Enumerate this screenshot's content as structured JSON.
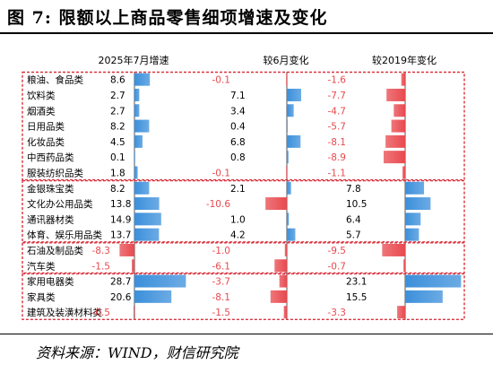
{
  "figure": {
    "title": "图 7:  限额以上商品零售细项增速及变化",
    "source": "资料来源：WIND，财信研究院"
  },
  "colors": {
    "positive": "#3b8fdb",
    "negative": "#e8494e",
    "dashed_box": "#d9333f",
    "grid": "#d0d0d0"
  },
  "chart_data": {
    "type": "bar",
    "title": "图 7:  限额以上商品零售细项增速及变化",
    "categories": [
      "粮油、食品类",
      "饮料类",
      "烟酒类",
      "日用品类",
      "化妆品类",
      "中西药品类",
      "服装纺织品类",
      "金银珠宝类",
      "文化办公用品类",
      "通讯器材类",
      "体育、娱乐用品类",
      "石油及制品类",
      "汽车类",
      "家用电器类",
      "家具类",
      "建筑及装潢材料类"
    ],
    "groups": [
      {
        "start": 0,
        "end": 6
      },
      {
        "start": 7,
        "end": 10
      },
      {
        "start": 11,
        "end": 12
      },
      {
        "start": 13,
        "end": 15
      }
    ],
    "series": [
      {
        "name": "2025年7月增速",
        "labels": [
          "8.6",
          "2.7",
          "2.7",
          "8.2",
          "4.5",
          "0.1",
          "1.8",
          "8.2",
          "13.8",
          "14.9",
          "13.7",
          "-8.3",
          "-1.5",
          "28.7",
          "20.6",
          "-0.5"
        ],
        "values": [
          8.6,
          2.7,
          2.7,
          8.2,
          4.5,
          0.1,
          1.8,
          8.2,
          13.8,
          14.9,
          13.7,
          -8.3,
          -1.5,
          28.7,
          20.6,
          -0.5
        ]
      },
      {
        "name": "较6月变化",
        "labels": [
          "-0.1",
          "7.1",
          "3.4",
          "0.4",
          "6.8",
          "0.8",
          "-0.1",
          "2.1",
          "-10.6",
          "1.0",
          "4.2",
          "-1.0",
          "-6.1",
          "-3.7",
          "-8.1",
          "-1.5"
        ],
        "values": [
          -0.1,
          7.1,
          3.4,
          0.4,
          6.8,
          0.8,
          -0.1,
          2.1,
          -10.6,
          1.0,
          4.2,
          -1.0,
          -6.1,
          -3.7,
          -8.1,
          -1.5
        ]
      },
      {
        "name": "较2019年变化",
        "labels": [
          "-1.6",
          "-7.7",
          "-4.7",
          "-5.7",
          "-8.1",
          "-8.9",
          "-1.1",
          "7.8",
          "10.5",
          "6.4",
          "5.7",
          "-9.5",
          "-0.7",
          "23.1",
          "15.5",
          "-3.3"
        ],
        "values": [
          -1.6,
          -7.7,
          -4.7,
          -5.7,
          -8.1,
          -8.9,
          -1.1,
          7.8,
          10.5,
          6.4,
          5.7,
          -9.5,
          -0.7,
          23.1,
          15.5,
          -3.3
        ]
      }
    ],
    "legend": "none",
    "grid": false
  }
}
